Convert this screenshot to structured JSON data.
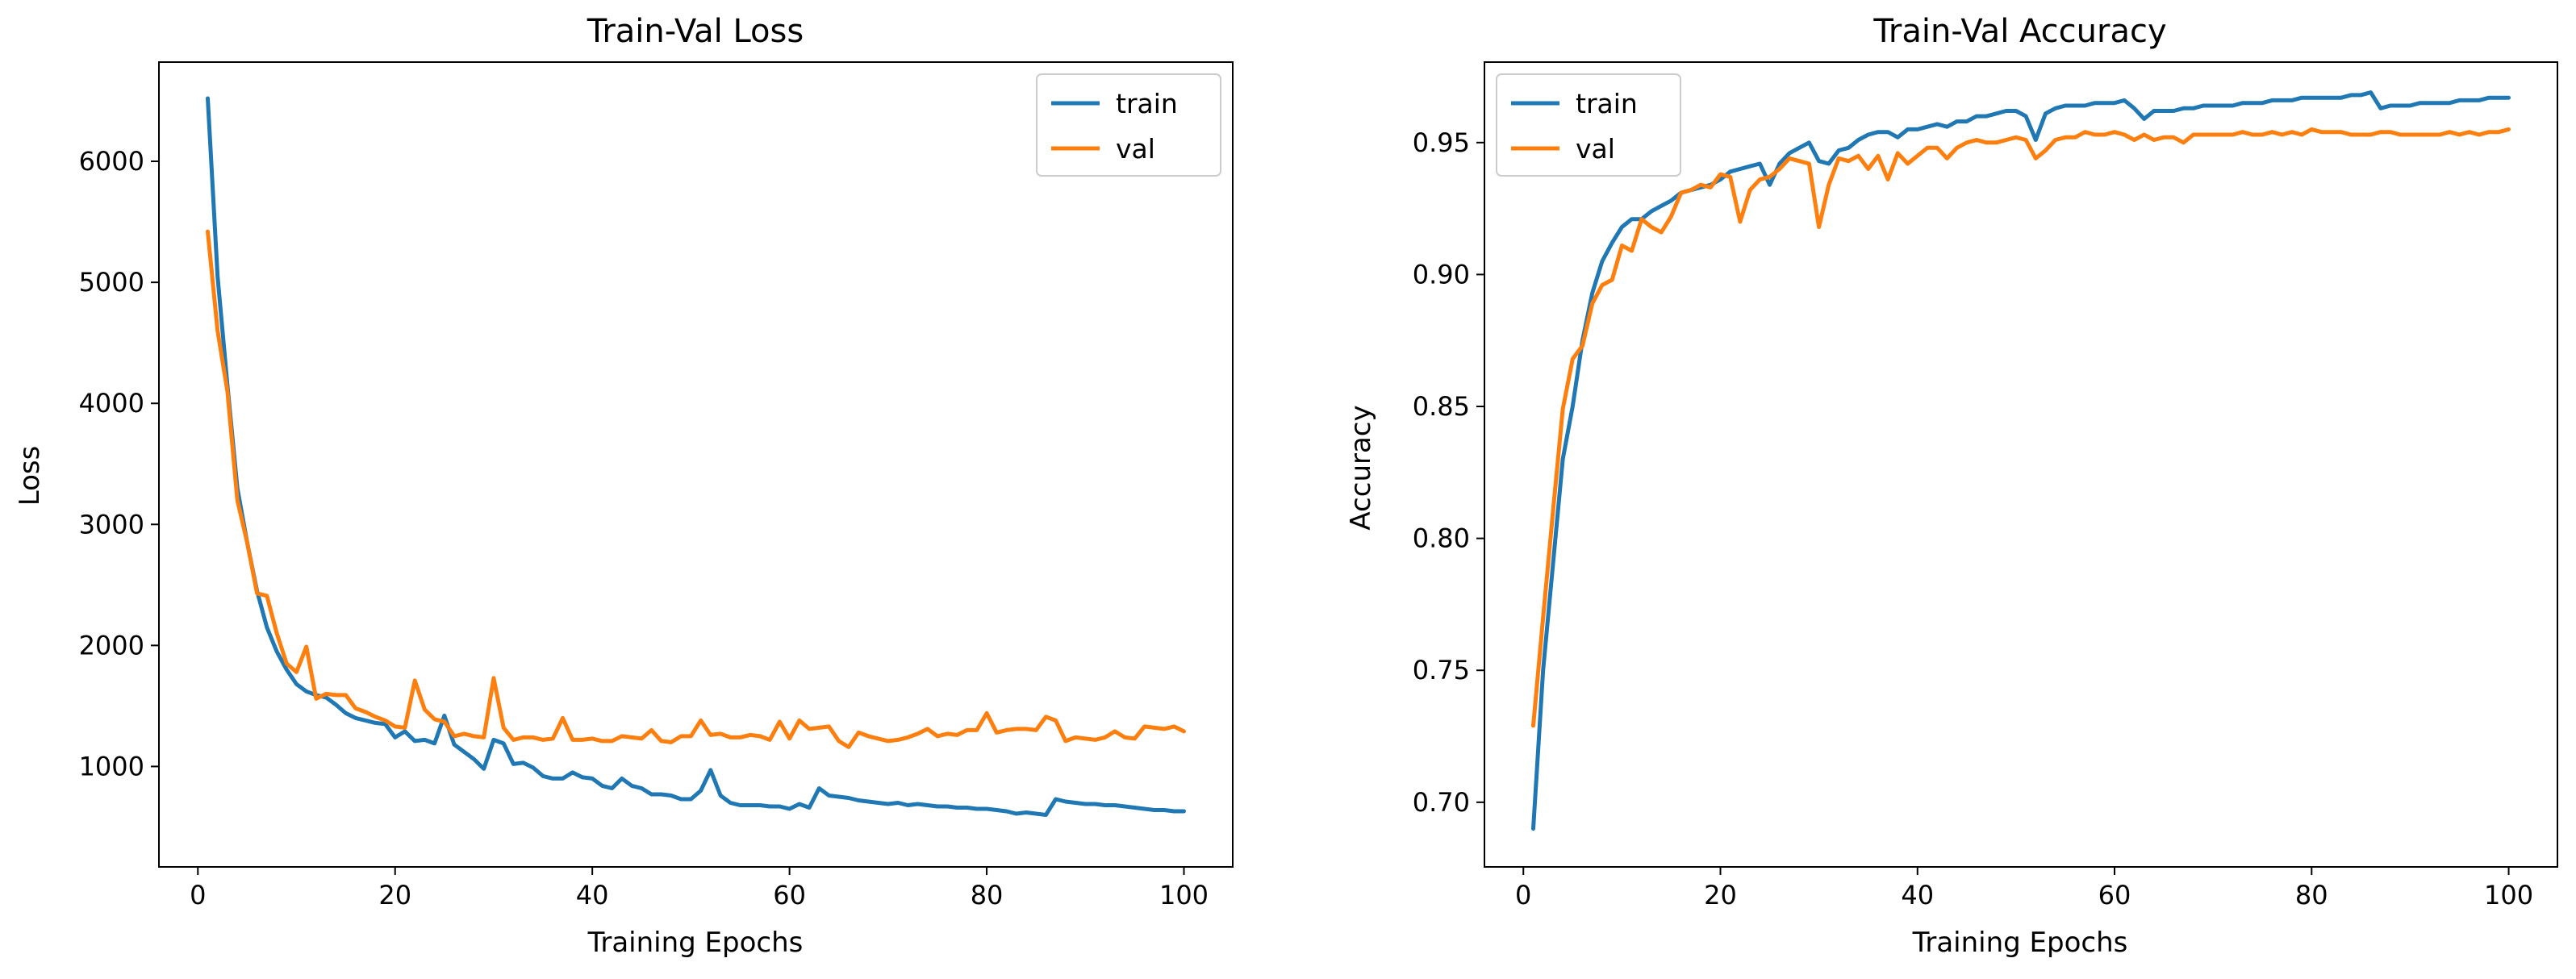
{
  "colors": {
    "train": "#1f77b4",
    "val": "#ff7f0e"
  },
  "chart_data": [
    {
      "type": "line",
      "title": "Train-Val Loss",
      "xlabel": "Training Epochs",
      "ylabel": "Loss",
      "xlim": [
        -3.95,
        104.95
      ],
      "ylim": [
        170,
        6820
      ],
      "xticks": [
        0,
        20,
        40,
        60,
        80,
        100
      ],
      "xtick_labels": [
        "0",
        "20",
        "40",
        "60",
        "80",
        "100"
      ],
      "yticks": [
        1000,
        2000,
        3000,
        4000,
        5000,
        6000
      ],
      "ytick_labels": [
        "1000",
        "2000",
        "3000",
        "4000",
        "5000",
        "6000"
      ],
      "legend_position": "top-right",
      "x": [
        1,
        2,
        3,
        4,
        5,
        6,
        7,
        8,
        9,
        10,
        11,
        12,
        13,
        14,
        15,
        16,
        17,
        18,
        19,
        20,
        21,
        22,
        23,
        24,
        25,
        26,
        27,
        28,
        29,
        30,
        31,
        32,
        33,
        34,
        35,
        36,
        37,
        38,
        39,
        40,
        41,
        42,
        43,
        44,
        45,
        46,
        47,
        48,
        49,
        50,
        51,
        52,
        53,
        54,
        55,
        56,
        57,
        58,
        59,
        60,
        61,
        62,
        63,
        64,
        65,
        66,
        67,
        68,
        69,
        70,
        71,
        72,
        73,
        74,
        75,
        76,
        77,
        78,
        79,
        80,
        81,
        82,
        83,
        84,
        85,
        86,
        87,
        88,
        89,
        90,
        91,
        92,
        93,
        94,
        95,
        96,
        97,
        98,
        99,
        100
      ],
      "series": [
        {
          "name": "train",
          "values": [
            6520,
            5050,
            4150,
            3300,
            2850,
            2450,
            2150,
            1950,
            1800,
            1680,
            1620,
            1590,
            1570,
            1510,
            1440,
            1400,
            1380,
            1360,
            1350,
            1240,
            1290,
            1210,
            1220,
            1190,
            1420,
            1180,
            1120,
            1060,
            980,
            1220,
            1190,
            1020,
            1030,
            990,
            920,
            900,
            900,
            950,
            910,
            900,
            840,
            820,
            900,
            840,
            820,
            770,
            770,
            760,
            730,
            730,
            800,
            970,
            760,
            700,
            680,
            680,
            680,
            670,
            670,
            650,
            690,
            660,
            820,
            760,
            750,
            740,
            720,
            710,
            700,
            690,
            700,
            680,
            690,
            680,
            670,
            670,
            660,
            660,
            650,
            650,
            640,
            630,
            610,
            620,
            610,
            600,
            730,
            710,
            700,
            690,
            690,
            680,
            680,
            670,
            660,
            650,
            640,
            640,
            630,
            630
          ]
        },
        {
          "name": "val",
          "values": [
            5420,
            4600,
            4100,
            3200,
            2850,
            2430,
            2410,
            2100,
            1850,
            1780,
            1990,
            1560,
            1600,
            1590,
            1590,
            1480,
            1450,
            1410,
            1380,
            1330,
            1320,
            1710,
            1470,
            1390,
            1370,
            1250,
            1270,
            1250,
            1240,
            1730,
            1320,
            1220,
            1240,
            1240,
            1220,
            1230,
            1400,
            1220,
            1220,
            1230,
            1210,
            1210,
            1250,
            1240,
            1230,
            1300,
            1210,
            1200,
            1250,
            1250,
            1380,
            1260,
            1270,
            1240,
            1240,
            1260,
            1250,
            1220,
            1370,
            1230,
            1380,
            1310,
            1320,
            1330,
            1210,
            1160,
            1280,
            1250,
            1230,
            1210,
            1220,
            1240,
            1270,
            1310,
            1250,
            1270,
            1260,
            1300,
            1300,
            1440,
            1280,
            1300,
            1310,
            1310,
            1300,
            1410,
            1380,
            1210,
            1240,
            1230,
            1220,
            1240,
            1290,
            1240,
            1230,
            1330,
            1320,
            1310,
            1330,
            1290
          ]
        }
      ]
    },
    {
      "type": "line",
      "title": "Train-Val Accuracy",
      "xlabel": "Training Epochs",
      "ylabel": "Accuracy",
      "xlim": [
        -3.95,
        104.95
      ],
      "ylim": [
        0.6755,
        0.9805
      ],
      "xticks": [
        0,
        20,
        40,
        60,
        80,
        100
      ],
      "xtick_labels": [
        "0",
        "20",
        "40",
        "60",
        "80",
        "100"
      ],
      "yticks": [
        0.7,
        0.75,
        0.8,
        0.85,
        0.9,
        0.95
      ],
      "ytick_labels": [
        "0.70",
        "0.75",
        "0.80",
        "0.85",
        "0.90",
        "0.95"
      ],
      "legend_position": "top-left",
      "x": [
        1,
        2,
        3,
        4,
        5,
        6,
        7,
        8,
        9,
        10,
        11,
        12,
        13,
        14,
        15,
        16,
        17,
        18,
        19,
        20,
        21,
        22,
        23,
        24,
        25,
        26,
        27,
        28,
        29,
        30,
        31,
        32,
        33,
        34,
        35,
        36,
        37,
        38,
        39,
        40,
        41,
        42,
        43,
        44,
        45,
        46,
        47,
        48,
        49,
        50,
        51,
        52,
        53,
        54,
        55,
        56,
        57,
        58,
        59,
        60,
        61,
        62,
        63,
        64,
        65,
        66,
        67,
        68,
        69,
        70,
        71,
        72,
        73,
        74,
        75,
        76,
        77,
        78,
        79,
        80,
        81,
        82,
        83,
        84,
        85,
        86,
        87,
        88,
        89,
        90,
        91,
        92,
        93,
        94,
        95,
        96,
        97,
        98,
        99,
        100
      ],
      "series": [
        {
          "name": "train",
          "values": [
            0.69,
            0.75,
            0.79,
            0.83,
            0.85,
            0.875,
            0.893,
            0.905,
            0.912,
            0.918,
            0.921,
            0.921,
            0.924,
            0.926,
            0.928,
            0.931,
            0.932,
            0.933,
            0.934,
            0.936,
            0.939,
            0.94,
            0.941,
            0.942,
            0.934,
            0.942,
            0.946,
            0.948,
            0.95,
            0.943,
            0.942,
            0.947,
            0.948,
            0.951,
            0.953,
            0.954,
            0.954,
            0.952,
            0.955,
            0.955,
            0.956,
            0.957,
            0.956,
            0.958,
            0.958,
            0.96,
            0.96,
            0.961,
            0.962,
            0.962,
            0.96,
            0.951,
            0.961,
            0.963,
            0.964,
            0.964,
            0.964,
            0.965,
            0.965,
            0.965,
            0.966,
            0.963,
            0.959,
            0.962,
            0.962,
            0.962,
            0.963,
            0.963,
            0.964,
            0.964,
            0.964,
            0.964,
            0.965,
            0.965,
            0.965,
            0.966,
            0.966,
            0.966,
            0.967,
            0.967,
            0.967,
            0.967,
            0.967,
            0.968,
            0.968,
            0.969,
            0.963,
            0.964,
            0.964,
            0.964,
            0.965,
            0.965,
            0.965,
            0.965,
            0.966,
            0.966,
            0.966,
            0.967,
            0.967,
            0.967
          ]
        },
        {
          "name": "val",
          "values": [
            0.729,
            0.77,
            0.81,
            0.849,
            0.868,
            0.873,
            0.889,
            0.896,
            0.898,
            0.911,
            0.909,
            0.921,
            0.918,
            0.916,
            0.922,
            0.931,
            0.932,
            0.934,
            0.933,
            0.938,
            0.937,
            0.92,
            0.932,
            0.936,
            0.937,
            0.94,
            0.944,
            0.943,
            0.942,
            0.918,
            0.934,
            0.944,
            0.943,
            0.945,
            0.94,
            0.945,
            0.936,
            0.946,
            0.942,
            0.945,
            0.948,
            0.948,
            0.944,
            0.948,
            0.95,
            0.951,
            0.95,
            0.95,
            0.951,
            0.952,
            0.951,
            0.944,
            0.947,
            0.951,
            0.952,
            0.952,
            0.954,
            0.953,
            0.953,
            0.954,
            0.953,
            0.951,
            0.953,
            0.951,
            0.952,
            0.952,
            0.95,
            0.953,
            0.953,
            0.953,
            0.953,
            0.953,
            0.954,
            0.953,
            0.953,
            0.954,
            0.953,
            0.954,
            0.953,
            0.955,
            0.954,
            0.954,
            0.954,
            0.953,
            0.953,
            0.953,
            0.954,
            0.954,
            0.953,
            0.953,
            0.953,
            0.953,
            0.953,
            0.954,
            0.953,
            0.954,
            0.953,
            0.954,
            0.954,
            0.955
          ]
        }
      ]
    }
  ]
}
